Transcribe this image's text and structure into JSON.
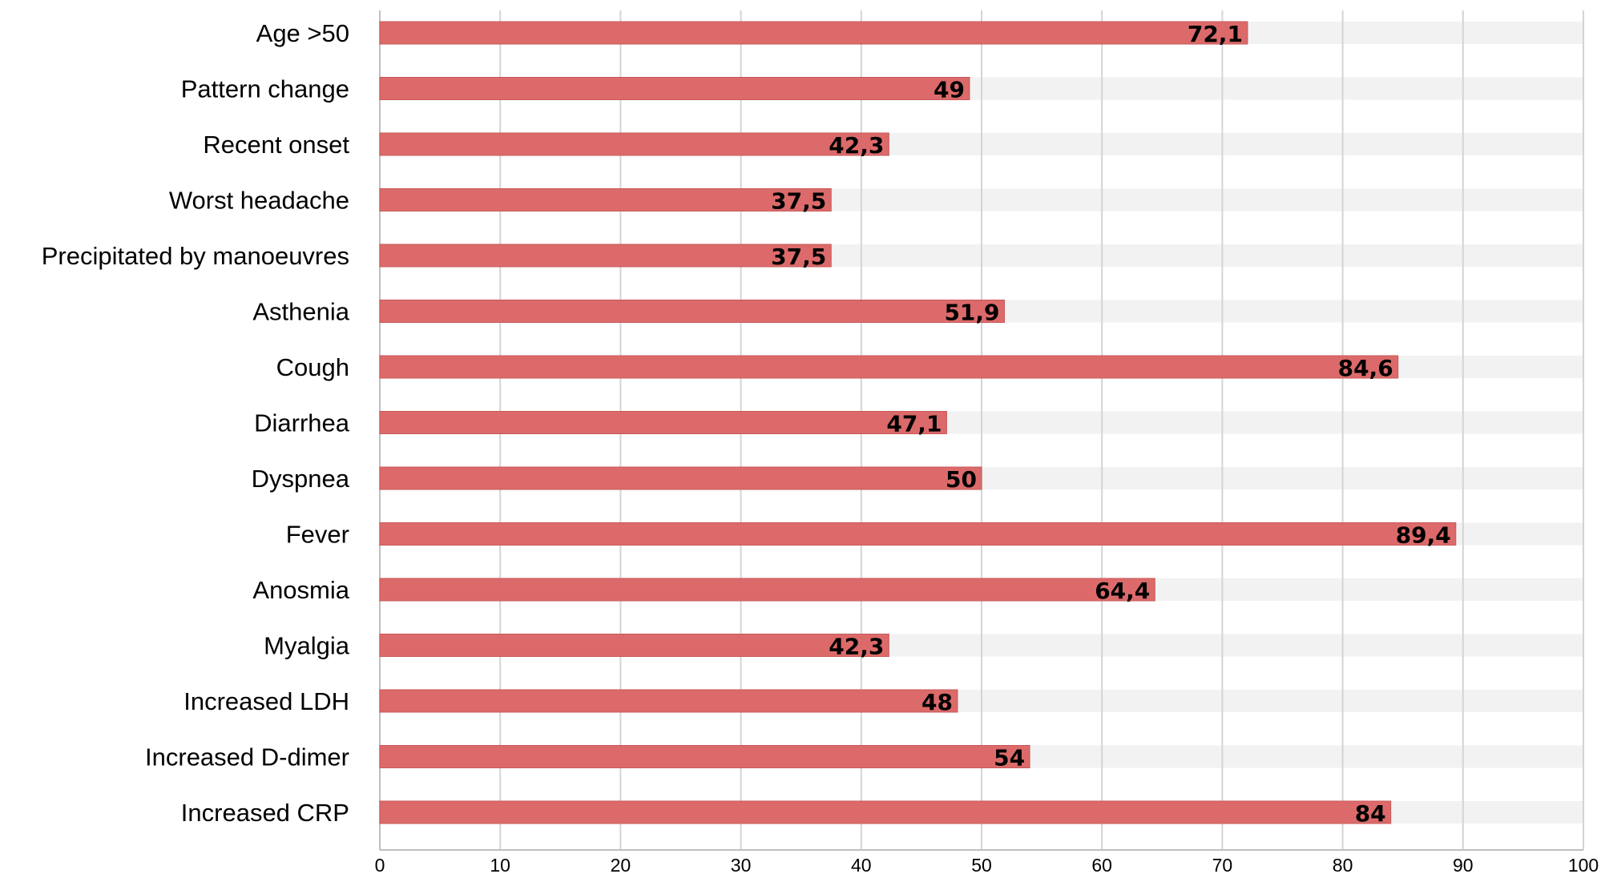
{
  "chart_data": {
    "type": "bar",
    "orientation": "horizontal",
    "title": "",
    "xlabel": "",
    "ylabel": "",
    "xlim": [
      0,
      100
    ],
    "x_ticks": [
      0,
      10,
      20,
      30,
      40,
      50,
      60,
      70,
      80,
      90,
      100
    ],
    "grid": "vertical",
    "legend": "none",
    "categories": [
      "Age >50",
      "Pattern change",
      "Recent onset",
      "Worst headache",
      "Precipitated by manoeuvres",
      "Asthenia",
      "Cough",
      "Diarrhea",
      "Dyspnea",
      "Fever",
      "Anosmia",
      "Myalgia",
      "Increased LDH",
      "Increased D-dimer",
      "Increased CRP"
    ],
    "values": [
      72.1,
      49,
      42.3,
      37.5,
      37.5,
      51.9,
      84.6,
      47.1,
      50,
      89.4,
      64.4,
      42.3,
      48,
      54,
      84
    ],
    "value_labels": [
      "72,1",
      "49",
      "42,3",
      "37,5",
      "37,5",
      "51,9",
      "84,6",
      "47,1",
      "50",
      "89,4",
      "64,4",
      "42,3",
      "48",
      "54",
      "84"
    ],
    "background_bar_value": 100,
    "colors": {
      "bar": "#dc6a6a",
      "bar_edge": "#c85a5a",
      "background_bar": "#f2f2f2"
    }
  }
}
